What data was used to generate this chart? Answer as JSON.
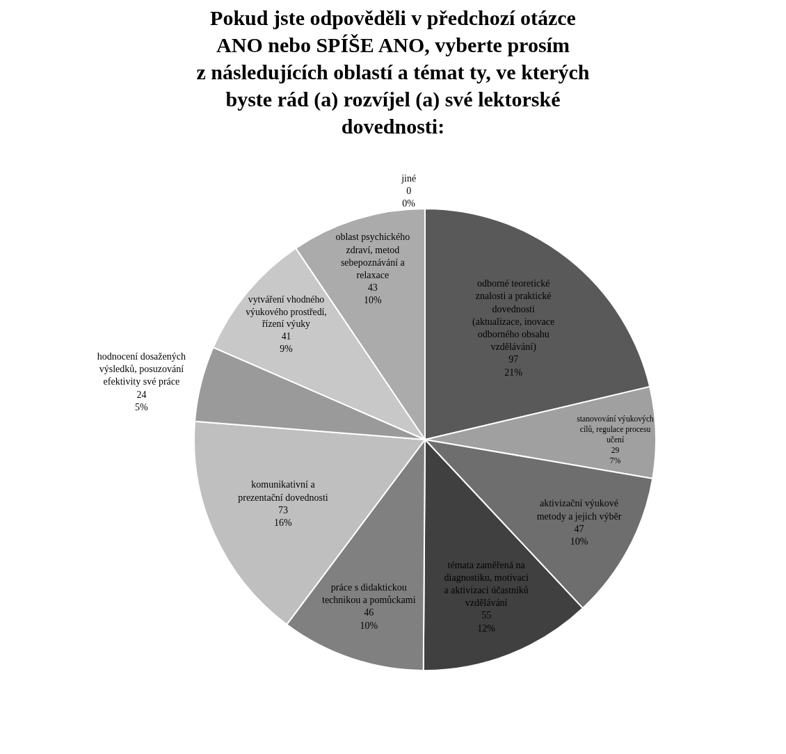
{
  "chart_data": {
    "type": "pie",
    "title": "Pokud jste odpověděli v předchozí otázce\nANO nebo SPÍŠE ANO, vyberte prosím\nz následujících oblastí a témat ty, ve kterých\nbyste rád (a) rozvíjel (a) své lektorské\ndovednosti:",
    "categories": [
      "odborné teoretické znalosti a praktické dovednosti (aktualizace, inovace odborného obsahu vzdělávání)",
      "stanovování výukových cílů, regulace procesu učení",
      "aktivizační výukové metody a jejich výběr",
      "témata zaměřená na diagnostiku, motivaci a aktivizaci účastníků vzdělávání",
      "práce s didaktickou technikou a pomůckami",
      "komunikativní a prezentační dovednosti",
      "hodnocení dosažených výsledků, posuzování efektivity své práce",
      "vytváření vhodného výukového prostředí, řízení výuky",
      "oblast psychického zdraví, metod sebepoznávání a relaxace",
      "jiné"
    ],
    "values": [
      97,
      29,
      47,
      55,
      46,
      73,
      24,
      41,
      43,
      0
    ],
    "value_labels": [
      "97\n21%",
      "29\n7%",
      "47\n10%",
      "55\n12%",
      "46\n10%",
      "73\n16%",
      "24\n5%",
      "41\n9%",
      "43\n10%",
      "0\n0%"
    ],
    "colors": [
      "#595959",
      "#a0a0a0",
      "#6e6e6e",
      "#404040",
      "#808080",
      "#bfbfbf",
      "#9a9a9a",
      "#c8c8c8",
      "#ababab",
      "#ffffff"
    ],
    "legend": false
  }
}
